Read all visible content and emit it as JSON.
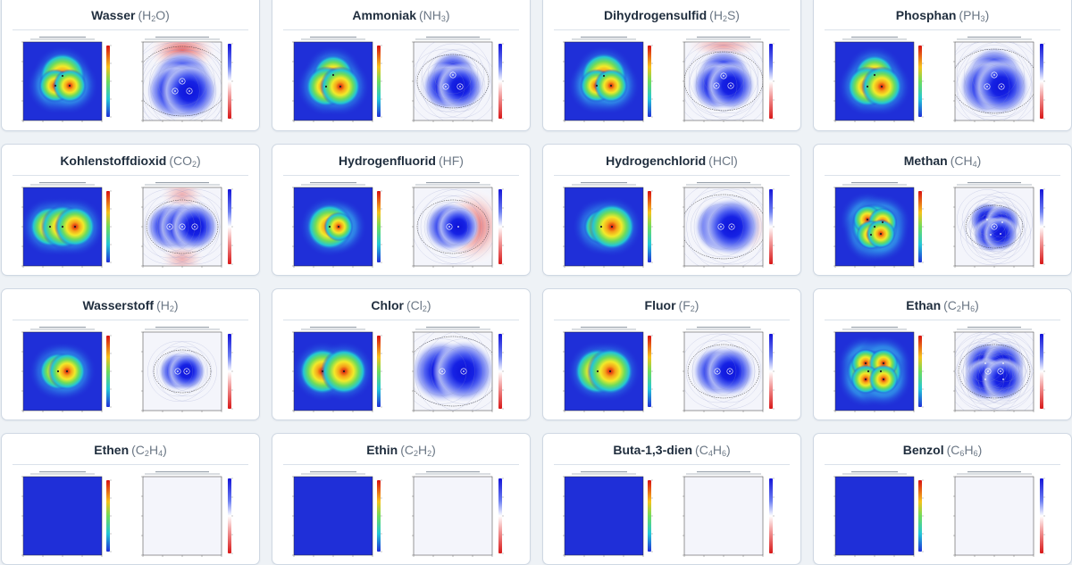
{
  "cards": [
    {
      "name": "Wasser",
      "formula": [
        [
          "H",
          ""
        ],
        [
          "2",
          "sub"
        ],
        [
          "O",
          ""
        ]
      ],
      "density": "bent3",
      "potential": "water"
    },
    {
      "name": "Ammoniak",
      "formula": [
        [
          "NH",
          ""
        ],
        [
          "3",
          "sub"
        ]
      ],
      "density": "tri",
      "potential": "tri"
    },
    {
      "name": "Dihydrogensulfid",
      "formula": [
        [
          "H",
          ""
        ],
        [
          "2",
          "sub"
        ],
        [
          "S",
          ""
        ]
      ],
      "density": "bent3",
      "potential": "h2s"
    },
    {
      "name": "Phosphan",
      "formula": [
        [
          "PH",
          ""
        ],
        [
          "3",
          "sub"
        ]
      ],
      "density": "tri",
      "potential": "ph3"
    },
    {
      "name": "Kohlenstoffdioxid",
      "formula": [
        [
          "CO",
          ""
        ],
        [
          "2",
          "sub"
        ]
      ],
      "density": "linear3",
      "potential": "co2"
    },
    {
      "name": "Hydrogenfluorid",
      "formula": [
        [
          "HF",
          ""
        ]
      ],
      "density": "hf",
      "potential": "hf"
    },
    {
      "name": "Hydrogenchlorid",
      "formula": [
        [
          "HCl",
          ""
        ]
      ],
      "density": "hcl",
      "potential": "hcl"
    },
    {
      "name": "Methan",
      "formula": [
        [
          "CH",
          ""
        ],
        [
          "4",
          "sub"
        ]
      ],
      "density": "ch4",
      "potential": "ch4"
    },
    {
      "name": "Wasserstoff",
      "formula": [
        [
          "H",
          ""
        ],
        [
          "2",
          "sub"
        ]
      ],
      "density": "h2",
      "potential": "h2"
    },
    {
      "name": "Chlor",
      "formula": [
        [
          "Cl",
          ""
        ],
        [
          "2",
          "sub"
        ]
      ],
      "density": "cl2",
      "potential": "cl2"
    },
    {
      "name": "Fluor",
      "formula": [
        [
          "F",
          ""
        ],
        [
          "2",
          "sub"
        ]
      ],
      "density": "f2",
      "potential": "f2"
    },
    {
      "name": "Ethan",
      "formula": [
        [
          "C",
          ""
        ],
        [
          "2",
          "sub"
        ],
        [
          "H",
          ""
        ],
        [
          "6",
          "sub"
        ]
      ],
      "density": "ethane",
      "potential": "ethane"
    },
    {
      "name": "Ethen",
      "formula": [
        [
          "C",
          ""
        ],
        [
          "2",
          "sub"
        ],
        [
          "H",
          ""
        ],
        [
          "4",
          "sub"
        ]
      ],
      "density": "none",
      "potential": "none"
    },
    {
      "name": "Ethin",
      "formula": [
        [
          "C",
          ""
        ],
        [
          "2",
          "sub"
        ],
        [
          "H",
          ""
        ],
        [
          "2",
          "sub"
        ]
      ],
      "density": "none",
      "potential": "none"
    },
    {
      "name": "Buta-1,3-dien",
      "formula": [
        [
          "C",
          ""
        ],
        [
          "4",
          "sub"
        ],
        [
          "H",
          ""
        ],
        [
          "6",
          "sub"
        ]
      ],
      "density": "none",
      "potential": "none"
    },
    {
      "name": "Benzol",
      "formula": [
        [
          "C",
          ""
        ],
        [
          "6",
          "sub"
        ],
        [
          "H",
          ""
        ],
        [
          "6",
          "sub"
        ]
      ],
      "density": "none",
      "potential": "none"
    }
  ],
  "colors": {
    "density_bg": "#1f2fd8",
    "potential_core": "#1a1ae0",
    "positive_tint": "#f3c9c9",
    "negative_tint": "#d6dcf5"
  }
}
